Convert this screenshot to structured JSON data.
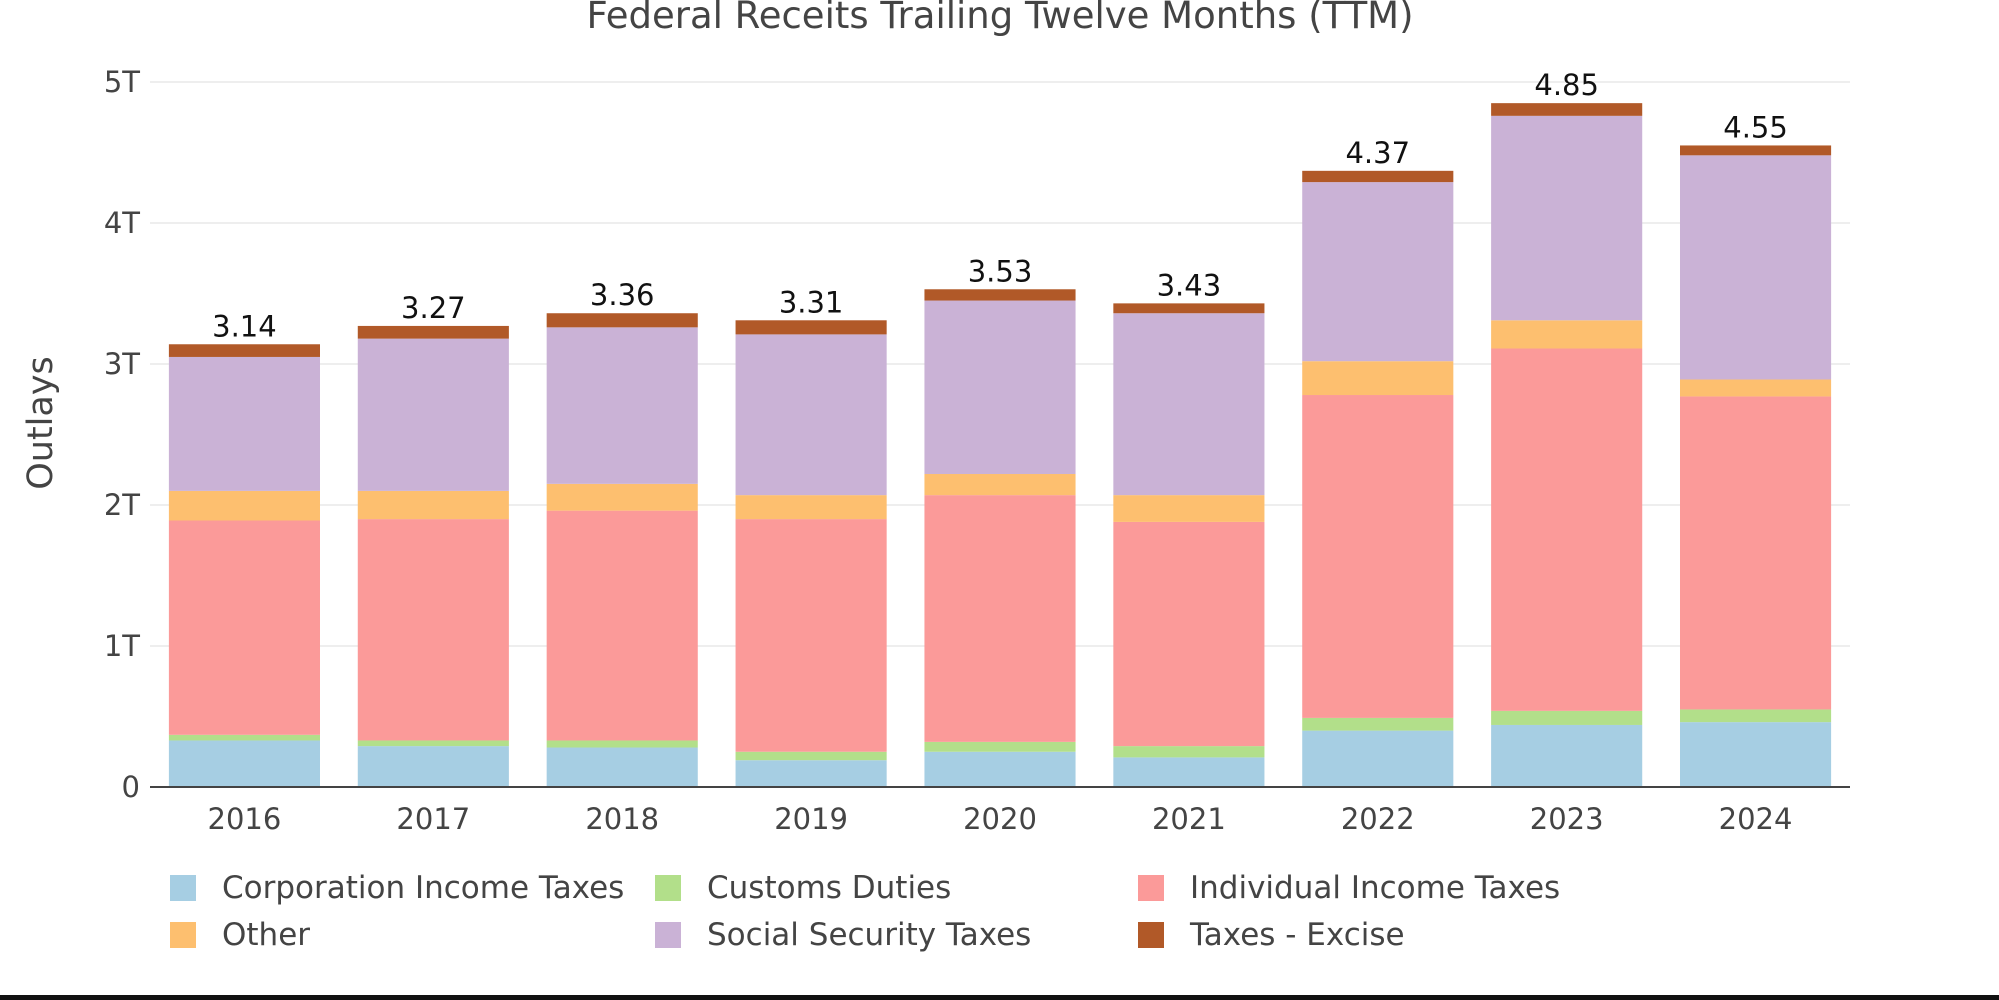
{
  "chart_data": {
    "type": "bar",
    "stacked": true,
    "title": "Federal Receits Trailing Twelve Months (TTM)",
    "xlabel": "",
    "ylabel": "Outlays",
    "ylim": [
      0,
      5
    ],
    "y_unit": "T",
    "y_ticks": [
      {
        "value": 0,
        "label": "0"
      },
      {
        "value": 1,
        "label": "1T"
      },
      {
        "value": 2,
        "label": "2T"
      },
      {
        "value": 3,
        "label": "3T"
      },
      {
        "value": 4,
        "label": "4T"
      },
      {
        "value": 5,
        "label": "5T"
      }
    ],
    "grid": true,
    "legend_position": "bottom",
    "categories": [
      "2016",
      "2017",
      "2018",
      "2019",
      "2020",
      "2021",
      "2022",
      "2023",
      "2024"
    ],
    "series": [
      {
        "name": "Corporation Income Taxes",
        "color": "#a6cee3",
        "values": [
          0.33,
          0.29,
          0.28,
          0.19,
          0.25,
          0.21,
          0.4,
          0.44,
          0.46
        ]
      },
      {
        "name": "Customs Duties",
        "color": "#b2df8a",
        "values": [
          0.04,
          0.04,
          0.05,
          0.06,
          0.07,
          0.08,
          0.09,
          0.1,
          0.09
        ]
      },
      {
        "name": "Individual Income Taxes",
        "color": "#fb9a99",
        "values": [
          1.52,
          1.57,
          1.63,
          1.65,
          1.75,
          1.59,
          2.29,
          2.57,
          2.22
        ]
      },
      {
        "name": "Other",
        "color": "#fdbf6f",
        "values": [
          0.21,
          0.2,
          0.19,
          0.17,
          0.15,
          0.19,
          0.24,
          0.2,
          0.12
        ]
      },
      {
        "name": "Social Security Taxes",
        "color": "#cab2d6",
        "values": [
          0.95,
          1.08,
          1.11,
          1.14,
          1.23,
          1.29,
          1.27,
          1.45,
          1.59
        ]
      },
      {
        "name": "Taxes - Excise",
        "color": "#b15928",
        "values": [
          0.09,
          0.09,
          0.1,
          0.1,
          0.08,
          0.07,
          0.08,
          0.09,
          0.07
        ]
      }
    ],
    "totals": [
      "3.14",
      "3.27",
      "3.36",
      "3.31",
      "3.53",
      "3.43",
      "4.37",
      "4.85",
      "4.55"
    ]
  }
}
